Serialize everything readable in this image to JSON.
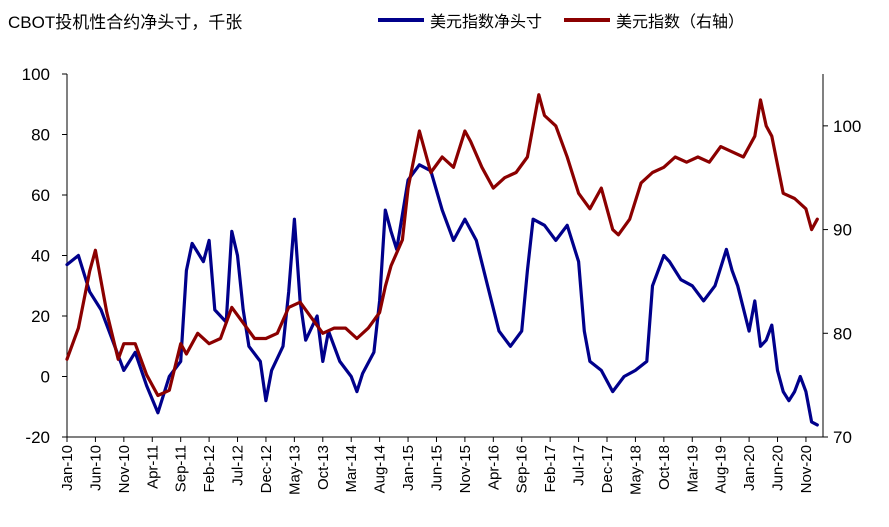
{
  "chart_data": {
    "type": "line",
    "title": "CBOT投机性合约净头寸，千张",
    "legend": [
      "美元指数净头寸",
      "美元指数（右轴）"
    ],
    "left_axis": {
      "ylim": [
        -20,
        100
      ],
      "ticks": [
        "-20",
        "0",
        "20",
        "40",
        "60",
        "80",
        "100"
      ]
    },
    "right_axis": {
      "ylim": [
        70,
        105
      ],
      "ticks": [
        "70",
        "80",
        "90",
        "100"
      ]
    },
    "x_ticks": [
      "Jan-10",
      "Jun-10",
      "Nov-10",
      "Apr-11",
      "Sep-11",
      "Feb-12",
      "Jul-12",
      "Dec-12",
      "May-13",
      "Oct-13",
      "Mar-14",
      "Aug-14",
      "Jan-15",
      "Jun-15",
      "Nov-15",
      "Apr-16",
      "Sep-16",
      "Feb-17",
      "Jul-17",
      "Dec-17",
      "May-18",
      "Oct-18",
      "Mar-19",
      "Aug-19",
      "Jan-20",
      "Jun-20",
      "Nov-20"
    ],
    "series": [
      {
        "name": "美元指数净头寸",
        "axis": "left",
        "color": "#00008b",
        "x": [
          "2010-01",
          "2010-03",
          "2010-05",
          "2010-07",
          "2010-09",
          "2010-11",
          "2011-01",
          "2011-03",
          "2011-05",
          "2011-07",
          "2011-09",
          "2011-10",
          "2011-11",
          "2012-01",
          "2012-02",
          "2012-03",
          "2012-05",
          "2012-06",
          "2012-07",
          "2012-08",
          "2012-09",
          "2012-11",
          "2012-12",
          "2013-01",
          "2013-03",
          "2013-04",
          "2013-05",
          "2013-06",
          "2013-07",
          "2013-09",
          "2013-10",
          "2013-11",
          "2014-01",
          "2014-03",
          "2014-04",
          "2014-05",
          "2014-07",
          "2014-08",
          "2014-09",
          "2014-10",
          "2014-11",
          "2015-01",
          "2015-03",
          "2015-05",
          "2015-07",
          "2015-09",
          "2015-11",
          "2016-01",
          "2016-03",
          "2016-05",
          "2016-07",
          "2016-09",
          "2016-10",
          "2016-11",
          "2017-01",
          "2017-03",
          "2017-05",
          "2017-07",
          "2017-08",
          "2017-09",
          "2017-11",
          "2018-01",
          "2018-03",
          "2018-05",
          "2018-07",
          "2018-08",
          "2018-09",
          "2018-10",
          "2018-11",
          "2019-01",
          "2019-03",
          "2019-05",
          "2019-07",
          "2019-09",
          "2019-10",
          "2019-11",
          "2020-01",
          "2020-02",
          "2020-03",
          "2020-04",
          "2020-05",
          "2020-06",
          "2020-07",
          "2020-08",
          "2020-09",
          "2020-10",
          "2020-11",
          "2020-12",
          "2021-01"
        ],
        "values": [
          37,
          40,
          28,
          22,
          12,
          2,
          8,
          -3,
          -12,
          0,
          5,
          35,
          44,
          38,
          45,
          22,
          18,
          48,
          40,
          22,
          10,
          5,
          -8,
          2,
          10,
          28,
          52,
          25,
          12,
          20,
          5,
          15,
          5,
          0,
          -5,
          1,
          8,
          25,
          55,
          48,
          42,
          65,
          70,
          68,
          55,
          45,
          52,
          45,
          30,
          15,
          10,
          15,
          35,
          52,
          50,
          45,
          50,
          38,
          15,
          5,
          2,
          -5,
          0,
          2,
          5,
          30,
          35,
          40,
          38,
          32,
          30,
          25,
          30,
          42,
          35,
          30,
          15,
          25,
          10,
          12,
          17,
          2,
          -5,
          -8,
          -5,
          0,
          -5,
          -15,
          -16
        ]
      },
      {
        "name": "美元指数（右轴）",
        "axis": "right",
        "color": "#8b0000",
        "x": [
          "2010-01",
          "2010-03",
          "2010-05",
          "2010-06",
          "2010-08",
          "2010-10",
          "2010-11",
          "2011-01",
          "2011-03",
          "2011-05",
          "2011-07",
          "2011-09",
          "2011-10",
          "2011-12",
          "2012-02",
          "2012-04",
          "2012-06",
          "2012-08",
          "2012-10",
          "2012-12",
          "2013-02",
          "2013-04",
          "2013-06",
          "2013-08",
          "2013-10",
          "2013-12",
          "2014-02",
          "2014-04",
          "2014-06",
          "2014-08",
          "2014-09",
          "2014-10",
          "2014-12",
          "2015-01",
          "2015-03",
          "2015-05",
          "2015-07",
          "2015-09",
          "2015-11",
          "2015-12",
          "2016-02",
          "2016-04",
          "2016-06",
          "2016-08",
          "2016-10",
          "2016-12",
          "2017-01",
          "2017-03",
          "2017-05",
          "2017-07",
          "2017-09",
          "2017-11",
          "2018-01",
          "2018-02",
          "2018-04",
          "2018-06",
          "2018-08",
          "2018-10",
          "2018-12",
          "2019-02",
          "2019-04",
          "2019-06",
          "2019-08",
          "2019-10",
          "2019-12",
          "2020-02",
          "2020-03",
          "2020-04",
          "2020-05",
          "2020-07",
          "2020-09",
          "2020-11",
          "2020-12",
          "2021-01"
        ],
        "values": [
          77.5,
          80.5,
          86,
          88,
          82,
          77.5,
          79,
          79,
          76,
          74,
          74.5,
          79,
          78,
          80,
          79,
          79.5,
          82.5,
          81,
          79.5,
          79.5,
          80,
          82.5,
          83,
          81.5,
          80,
          80.5,
          80.5,
          79.5,
          80.5,
          82,
          84.5,
          86.5,
          89,
          94,
          99.5,
          95.5,
          97,
          96,
          99.5,
          98.5,
          96,
          94,
          95,
          95.5,
          97,
          103,
          101,
          100,
          97,
          93.5,
          92,
          94,
          90,
          89.5,
          91,
          94.5,
          95.5,
          96,
          97,
          96.5,
          97,
          96.5,
          98,
          97.5,
          97,
          99,
          102.5,
          100,
          99,
          93.5,
          93,
          92,
          90,
          91
        ]
      }
    ]
  }
}
